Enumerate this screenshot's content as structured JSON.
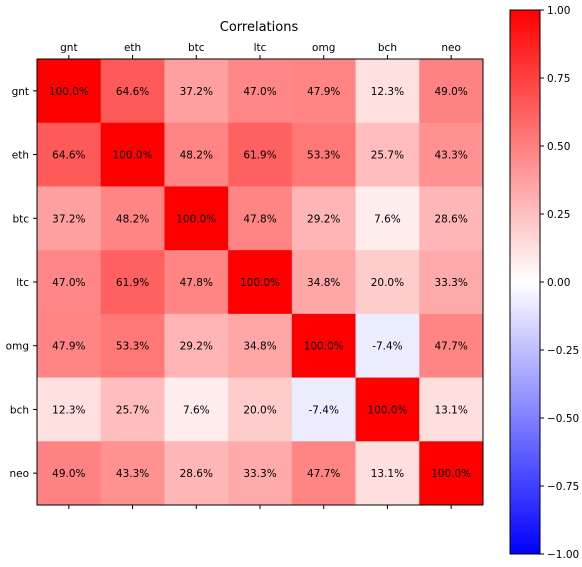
{
  "chart_data": {
    "type": "heatmap",
    "title": "Correlations",
    "x_labels": [
      "gnt",
      "eth",
      "btc",
      "ltc",
      "omg",
      "bch",
      "neo"
    ],
    "y_labels": [
      "gnt",
      "eth",
      "btc",
      "ltc",
      "omg",
      "bch",
      "neo"
    ],
    "values": [
      [
        1.0,
        0.646,
        0.372,
        0.47,
        0.479,
        0.123,
        0.49
      ],
      [
        0.646,
        1.0,
        0.482,
        0.619,
        0.533,
        0.257,
        0.433
      ],
      [
        0.372,
        0.482,
        1.0,
        0.478,
        0.292,
        0.076,
        0.286
      ],
      [
        0.47,
        0.619,
        0.478,
        1.0,
        0.348,
        0.2,
        0.333
      ],
      [
        0.479,
        0.533,
        0.292,
        0.348,
        1.0,
        -0.074,
        0.477
      ],
      [
        0.123,
        0.257,
        0.076,
        0.2,
        -0.074,
        1.0,
        0.131
      ],
      [
        0.49,
        0.433,
        0.286,
        0.333,
        0.477,
        0.131,
        1.0
      ]
    ],
    "cell_labels": [
      [
        "100.0%",
        "64.6%",
        "37.2%",
        "47.0%",
        "47.9%",
        "12.3%",
        "49.0%"
      ],
      [
        "64.6%",
        "100.0%",
        "48.2%",
        "61.9%",
        "53.3%",
        "25.7%",
        "43.3%"
      ],
      [
        "37.2%",
        "48.2%",
        "100.0%",
        "47.8%",
        "29.2%",
        "7.6%",
        "28.6%"
      ],
      [
        "47.0%",
        "61.9%",
        "47.8%",
        "100.0%",
        "34.8%",
        "20.0%",
        "33.3%"
      ],
      [
        "47.9%",
        "53.3%",
        "29.2%",
        "34.8%",
        "100.0%",
        "-7.4%",
        "47.7%"
      ],
      [
        "12.3%",
        "25.7%",
        "7.6%",
        "20.0%",
        "-7.4%",
        "100.0%",
        "13.1%"
      ],
      [
        "49.0%",
        "43.3%",
        "28.6%",
        "33.3%",
        "47.7%",
        "13.1%",
        "100.0%"
      ]
    ],
    "colormap": {
      "low": "#0000ff",
      "mid": "#ffffff",
      "high": "#ff0000"
    },
    "vmin": -1.0,
    "vmax": 1.0,
    "colorbar_ticks": [
      1.0,
      0.75,
      0.5,
      0.25,
      0.0,
      -0.25,
      -0.5,
      -0.75,
      -1.0
    ],
    "colorbar_tick_labels": [
      "1.00",
      "0.75",
      "0.50",
      "0.25",
      "0.00",
      "−0.25",
      "−0.50",
      "−0.75",
      "−1.00"
    ],
    "x_tick_position": "top",
    "grid": false,
    "colorbar_position": "right"
  }
}
